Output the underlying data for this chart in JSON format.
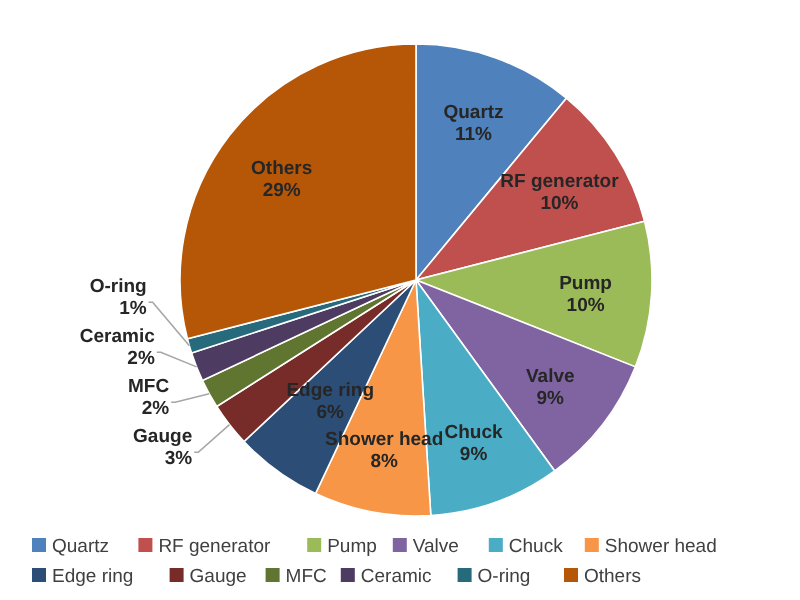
{
  "chart_data": {
    "type": "pie",
    "categories": [
      "Quartz",
      "RF generator",
      "Pump",
      "Valve",
      "Chuck",
      "Shower head",
      "Edge ring",
      "Gauge",
      "MFC",
      "Ceramic",
      "O-ring",
      "Others"
    ],
    "values": [
      11,
      10,
      10,
      9,
      9,
      8,
      6,
      3,
      2,
      2,
      1,
      29
    ],
    "value_labels": [
      "11%",
      "10%",
      "10%",
      "9%",
      "9%",
      "8%",
      "6%",
      "3%",
      "2%",
      "2%",
      "1%",
      "29%"
    ],
    "colors": [
      "#4f81bd",
      "#c0504d",
      "#9bbb59",
      "#8064a2",
      "#4bacc6",
      "#f79646",
      "#2c4d75",
      "#772c2a",
      "#5f7530",
      "#4d3b62",
      "#276a7c",
      "#b65708"
    ],
    "legend": "bottom"
  }
}
